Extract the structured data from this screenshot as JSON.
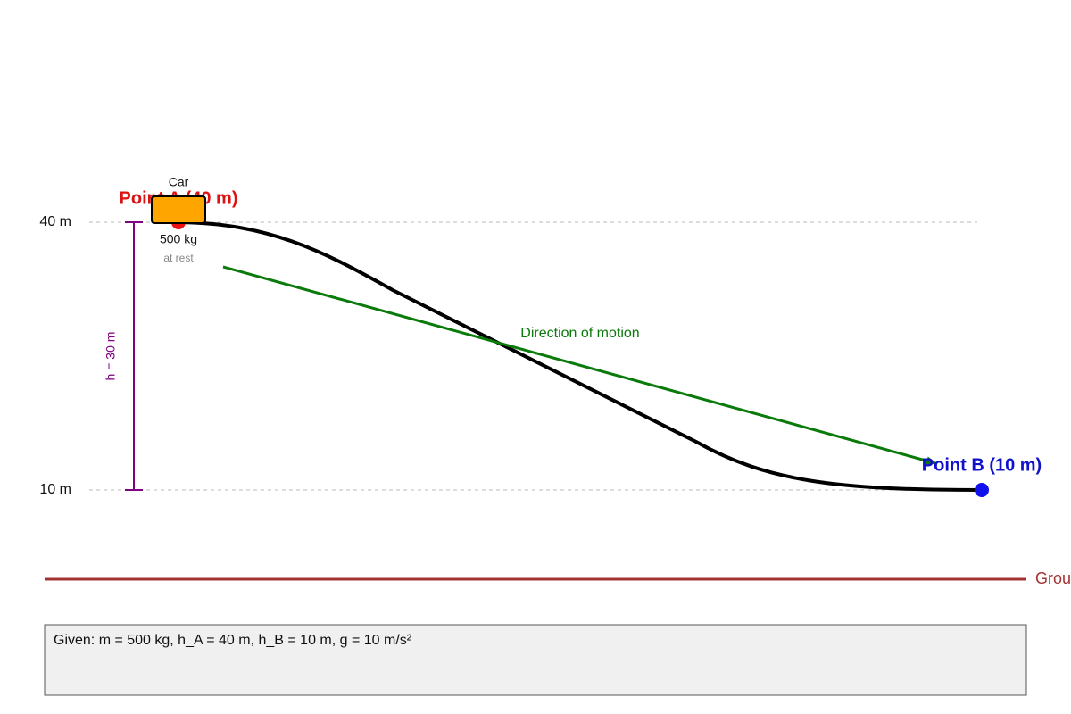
{
  "axis": {
    "top_level": "40 m",
    "bottom_level": "10 m",
    "height_difference": "h = 30 m"
  },
  "car": {
    "label": "Car",
    "mass": "500 kg",
    "state": "at rest"
  },
  "points": {
    "a": "Point A (40 m)",
    "b": "Point B (10 m)"
  },
  "motion": {
    "label": "Direction of motion"
  },
  "ground": {
    "label": "Ground"
  },
  "given": {
    "text": "Given: m = 500 kg, h_A = 40 m, h_B = 10 m, g = 10 m/s²"
  }
}
